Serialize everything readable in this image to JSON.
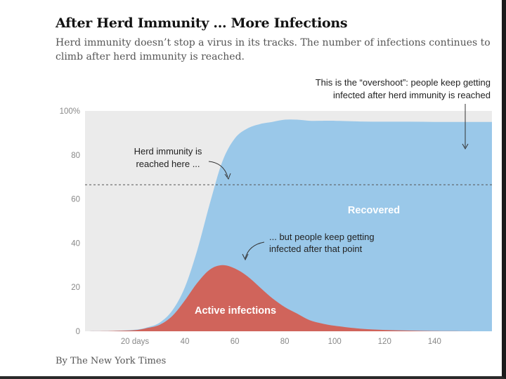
{
  "header": {
    "title": "After Herd Immunity ... More Infections",
    "subtitle": "Herd immunity doesn’t stop a virus in its tracks. The number of infections continues to climb after herd immunity is reached."
  },
  "byline": "By The New York Times",
  "annotations": {
    "overshoot": [
      "This is the “overshoot”: people keep getting",
      "infected after herd immunity is reached"
    ],
    "herd": [
      "Herd immunity is",
      "reached here ..."
    ],
    "after": [
      "... but people keep getting",
      "infected after that point"
    ]
  },
  "colors": {
    "recovered": "#9ac8e9",
    "active": "#d0645b",
    "background": "#ebebeb",
    "threshold_line": "#555555"
  },
  "chart_data": {
    "type": "area",
    "stacked": true,
    "xlim": [
      0,
      163
    ],
    "ylim": [
      0,
      100
    ],
    "x_ticks": [
      {
        "value": 20,
        "label": "20 days"
      },
      {
        "value": 40,
        "label": "40"
      },
      {
        "value": 60,
        "label": "60"
      },
      {
        "value": 80,
        "label": "80"
      },
      {
        "value": 100,
        "label": "100"
      },
      {
        "value": 120,
        "label": "120"
      },
      {
        "value": 140,
        "label": "140"
      }
    ],
    "y_ticks": [
      {
        "value": 0,
        "label": "0"
      },
      {
        "value": 20,
        "label": "20"
      },
      {
        "value": 40,
        "label": "40"
      },
      {
        "value": 60,
        "label": "60"
      },
      {
        "value": 80,
        "label": "80"
      },
      {
        "value": 100,
        "label": "100%"
      }
    ],
    "threshold": 66.5,
    "grid": false,
    "x": [
      0,
      10,
      20,
      25,
      30,
      35,
      40,
      45,
      50,
      55,
      60,
      65,
      70,
      75,
      80,
      85,
      90,
      95,
      100,
      110,
      120,
      130,
      140,
      150,
      163
    ],
    "series": [
      {
        "name": "Active infections",
        "values": [
          0,
          0.1,
          0.5,
          1.5,
          3,
          7,
          14,
          22,
          28,
          30,
          28.5,
          25,
          20,
          15,
          11,
          8,
          5,
          3.5,
          2.5,
          1.2,
          0.6,
          0.3,
          0.1,
          0.05,
          0
        ]
      },
      {
        "name": "Recovered",
        "values": [
          0,
          0,
          0.2,
          0.3,
          1,
          2.5,
          6,
          15,
          30,
          47,
          59,
          67,
          74,
          80,
          85,
          88,
          90.5,
          92,
          93,
          94,
          94.5,
          94.8,
          94.9,
          94.95,
          95
        ]
      }
    ]
  }
}
